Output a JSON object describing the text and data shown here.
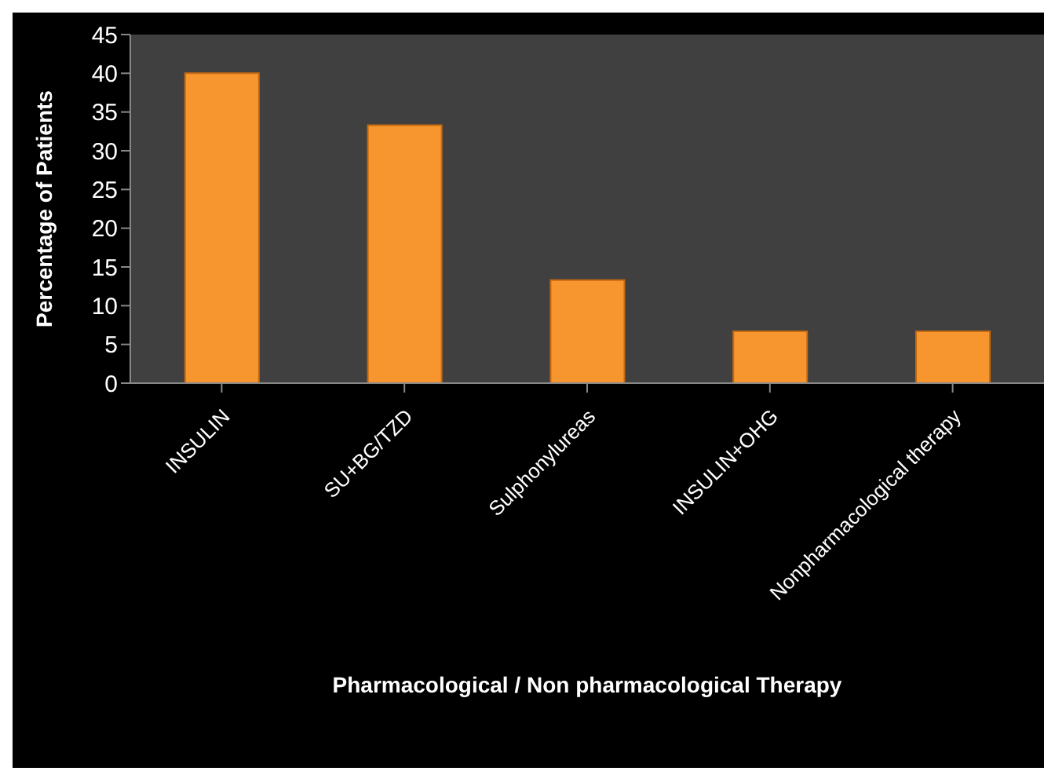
{
  "chart_data": {
    "type": "bar",
    "xlabel": "Pharmacological  / Non pharmacological  Therapy",
    "ylabel": "Percentage of Patients",
    "categories": [
      "INSULIN",
      "SU+BG/TZD",
      "Sulphonylureas",
      "INSULIN+OHG",
      "Nonpharmacological therapy"
    ],
    "values": [
      40,
      33.3,
      13.3,
      6.7,
      6.7
    ],
    "color": "#f7962e",
    "ylim": [
      0,
      45
    ],
    "yticks": [
      0,
      5,
      10,
      15,
      20,
      25,
      30,
      35,
      40,
      45
    ],
    "grid": false,
    "legend": false
  }
}
